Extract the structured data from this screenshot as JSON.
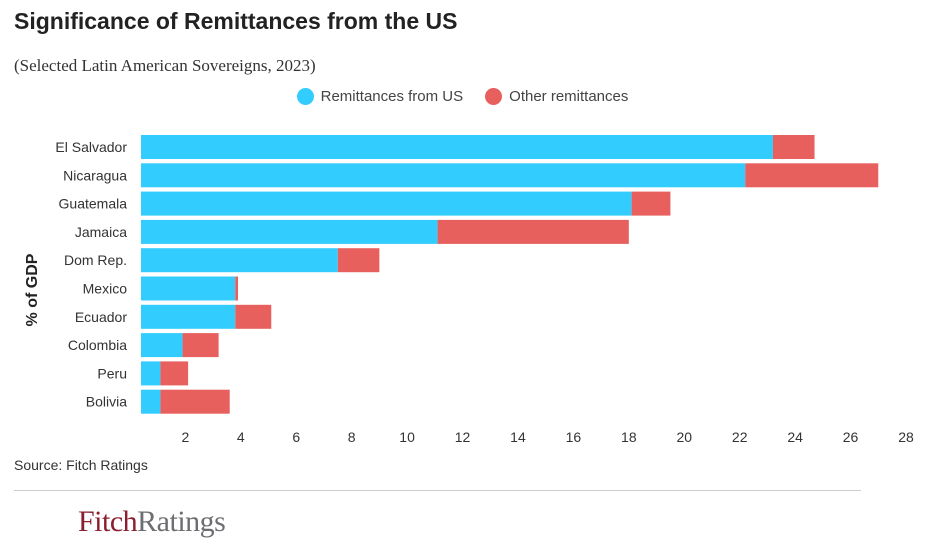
{
  "title": "Significance of Remittances from the US",
  "subtitle": "(Selected Latin American Sovereigns, 2023)",
  "source": "Source: Fitch Ratings",
  "logo": {
    "part1": "Fitch",
    "part2": "Ratings"
  },
  "colors": {
    "us": "#33CCFF",
    "other": "#E8605E",
    "axis_text": "#333333"
  },
  "chart_data": {
    "type": "bar",
    "orientation": "horizontal",
    "stacked": true,
    "ylabel": "% of GDP",
    "xlabel": "",
    "categories": [
      "El Salvador",
      "Nicaragua",
      "Guatemala",
      "Jamaica",
      "Dom Rep.",
      "Mexico",
      "Ecuador",
      "Colombia",
      "Peru",
      "Bolivia"
    ],
    "series": [
      {
        "name": "Remittances from US",
        "values": [
          23.2,
          22.2,
          18.1,
          11.1,
          7.5,
          3.8,
          3.8,
          1.9,
          1.1,
          1.1
        ]
      },
      {
        "name": "Other remittances",
        "values": [
          1.5,
          4.8,
          1.4,
          6.9,
          1.5,
          0.1,
          1.3,
          1.3,
          1.0,
          2.5
        ]
      }
    ],
    "xlim": [
      0.4,
      28
    ],
    "xticks": [
      2,
      4,
      6,
      8,
      10,
      12,
      14,
      16,
      18,
      20,
      22,
      24,
      26,
      28
    ],
    "legend_position": "top-center",
    "grid": false
  }
}
